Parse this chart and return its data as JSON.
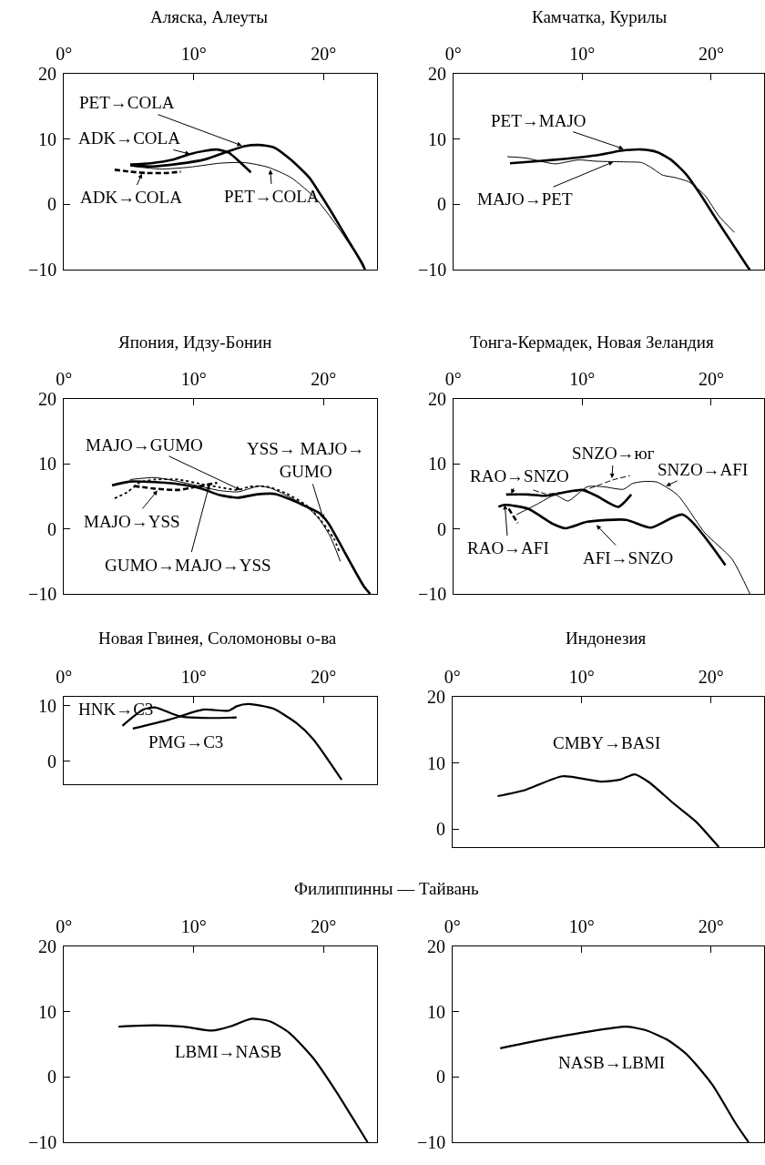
{
  "chart_data": [
    {
      "type": "line",
      "title": "Аляска, Алеуты",
      "xlim": [
        0,
        24.1
      ],
      "ylim": [
        -10,
        20
      ],
      "xticks": [
        {
          "value": 0,
          "label": "0°"
        },
        {
          "value": 10,
          "label": "10°"
        },
        {
          "value": 20,
          "label": "20°"
        }
      ],
      "yticks": [
        -10,
        0,
        10,
        20
      ],
      "series": [
        {
          "color": "#000000",
          "line_style": "solid",
          "x": [
            5.1,
            6.7,
            8.8,
            10.9,
            12.5,
            13.9,
            15.0,
            16.2,
            17.5,
            18.9,
            19.8,
            20.8,
            21.9,
            23.0,
            23.2
          ],
          "values": [
            6.0,
            5.8,
            6.2,
            6.9,
            8.0,
            8.9,
            9.1,
            8.7,
            6.8,
            4.1,
            1.4,
            -1.8,
            -5.5,
            -9.1,
            -10
          ]
        },
        {
          "color": "#000000",
          "line_style": "solid",
          "x": [
            5.1,
            6.7,
            8.3,
            9.7,
            10.9,
            11.8,
            12.7,
            13.6,
            14.4
          ],
          "values": [
            6.1,
            6.3,
            6.8,
            7.7,
            8.2,
            8.4,
            7.9,
            6.4,
            4.9
          ]
        },
        {
          "color": "#000000",
          "line_style": "solid",
          "x": [
            5.1,
            7.4,
            9.7,
            12.0,
            13.9,
            15.7,
            17.5,
            19.4,
            21.0,
            22.4,
            23.1
          ],
          "values": [
            5.9,
            5.4,
            5.7,
            6.3,
            6.4,
            5.7,
            4.1,
            0.9,
            -3.2,
            -7.3,
            -9.8
          ]
        },
        {
          "color": "#000000",
          "line_style": "dashed",
          "x": [
            3.9,
            5.1,
            6.3,
            7.9,
            9.0
          ],
          "values": [
            5.3,
            5.0,
            4.8,
            4.8,
            5.0
          ]
        }
      ],
      "annotations": [
        {
          "text": "PET→COLA",
          "x": 13.7,
          "y": 9.0
        },
        {
          "text": "ADK→COLA",
          "x": 9.7,
          "y": 7.7
        },
        {
          "text": "ADK→COLA",
          "x": 6.0,
          "y": 4.7
        },
        {
          "text": "PET→COLA",
          "x": 15.9,
          "y": 5.3
        }
      ]
    },
    {
      "type": "line",
      "title": "Камчатка, Курилы",
      "xlim": [
        0,
        24.1
      ],
      "ylim": [
        -10,
        20
      ],
      "xticks": [
        {
          "value": 0,
          "label": "0°"
        },
        {
          "value": 10,
          "label": "10°"
        },
        {
          "value": 20,
          "label": "20°"
        }
      ],
      "yticks": [
        -10,
        0,
        10,
        20
      ],
      "series": [
        {
          "color": "#000000",
          "line_style": "solid",
          "x": [
            4.4,
            6.5,
            8.8,
            11.1,
            13.0,
            14.6,
            15.8,
            16.9,
            18.1,
            19.2,
            20.4,
            21.6,
            22.8,
            23.0
          ],
          "values": [
            6.3,
            6.6,
            7.0,
            7.5,
            8.2,
            8.4,
            8.0,
            6.8,
            4.5,
            1.4,
            -2.3,
            -5.9,
            -9.5,
            -10
          ]
        },
        {
          "color": "#000000",
          "line_style": "solid",
          "x": [
            4.2,
            5.6,
            7.0,
            7.9,
            9.7,
            11.1,
            13.4,
            14.6,
            15.3,
            16.2,
            17.2,
            18.3,
            19.5,
            20.6,
            21.8
          ],
          "values": [
            7.3,
            7.1,
            6.5,
            6.2,
            6.8,
            6.6,
            6.5,
            6.4,
            5.7,
            4.5,
            4.1,
            3.4,
            1.4,
            -1.8,
            -4.3
          ]
        }
      ],
      "annotations": [
        {
          "text": "PET→MAJO",
          "x": 13.2,
          "y": 8.5
        },
        {
          "text": "MAJO→PET",
          "x": 12.4,
          "y": 6.5
        }
      ]
    },
    {
      "type": "line",
      "title": "Япония, Идзу-Бонин",
      "xlim": [
        0,
        24.1
      ],
      "ylim": [
        -10,
        20
      ],
      "xticks": [
        {
          "value": 0,
          "label": "0°"
        },
        {
          "value": 10,
          "label": "10°"
        },
        {
          "value": 20,
          "label": "20°"
        }
      ],
      "yticks": [
        -10,
        0,
        10,
        20
      ],
      "series": [
        {
          "color": "#000000",
          "line_style": "solid",
          "x": [
            3.7,
            5.1,
            7.0,
            8.8,
            10.6,
            12.0,
            13.4,
            14.8,
            16.2,
            17.5,
            18.7,
            19.7,
            20.4,
            21.2,
            22.1,
            23.1,
            23.6
          ],
          "values": [
            6.7,
            7.3,
            7.2,
            6.9,
            6.2,
            5.2,
            4.8,
            5.3,
            5.4,
            4.5,
            3.4,
            2.4,
            0.8,
            -2.0,
            -5.3,
            -8.8,
            -10
          ]
        },
        {
          "color": "#000000",
          "line_style": "solid",
          "x": [
            5.1,
            7.0,
            8.8,
            10.6,
            12.0,
            13.4,
            14.3,
            15.0,
            15.9,
            17.3,
            18.7,
            19.6,
            20.5,
            21.3
          ],
          "values": [
            7.6,
            7.9,
            7.3,
            6.5,
            5.9,
            5.7,
            6.2,
            6.6,
            6.3,
            5.0,
            3.4,
            1.7,
            -1.1,
            -5.0
          ]
        },
        {
          "color": "#000000",
          "line_style": "dotted",
          "x": [
            3.9,
            4.9,
            5.8,
            7.0,
            8.8,
            10.6,
            12.0,
            13.4,
            14.3,
            15.7,
            17.1,
            18.7,
            19.8,
            20.8,
            21.2
          ],
          "values": [
            4.7,
            5.7,
            7.1,
            7.6,
            7.6,
            6.9,
            6.4,
            6.0,
            6.5,
            6.5,
            5.5,
            3.6,
            1.3,
            -1.5,
            -3.4
          ]
        },
        {
          "color": "#000000",
          "line_style": "dashed",
          "x": [
            5.4,
            7.0,
            8.8,
            10.2,
            11.8
          ],
          "values": [
            6.6,
            6.2,
            6.0,
            6.5,
            7.1
          ]
        }
      ],
      "annotations": [
        {
          "text": "MAJO→GUMO",
          "x": 13.6,
          "y": 6.0
        },
        {
          "text": "YSS→ MAJO→\nGUMO",
          "x": 20.0,
          "y": 1.5
        },
        {
          "text": "MAJO→YSS",
          "x": 7.2,
          "y": 5.9
        },
        {
          "text": "GUMO→MAJO→YSS",
          "x": 11.2,
          "y": 6.8
        }
      ]
    },
    {
      "type": "line",
      "title": "Тонга-Кермадек, Новая Зеландия",
      "xlim": [
        0,
        24.1
      ],
      "ylim": [
        -10,
        20
      ],
      "xticks": [
        {
          "value": 0,
          "label": "0°"
        },
        {
          "value": 10,
          "label": "10°"
        },
        {
          "value": 20,
          "label": "20°"
        }
      ],
      "yticks": [
        -10,
        0,
        10,
        20
      ],
      "series": [
        {
          "color": "#000000",
          "line_style": "solid",
          "x": [
            4.1,
            5.8,
            7.2,
            8.8,
            10.0,
            11.1,
            12.8,
            13.8
          ],
          "values": [
            5.3,
            5.3,
            5.1,
            5.7,
            6.0,
            5.1,
            3.4,
            5.3
          ]
        },
        {
          "color": "#000000",
          "line_style": "solid",
          "x": [
            3.5,
            4.0,
            5.8,
            7.7,
            8.7,
            10.4,
            13.4,
            15.3,
            17.8,
            21.1
          ],
          "values": [
            3.4,
            3.7,
            3.1,
            0.8,
            0.1,
            1.1,
            1.4,
            0.2,
            2.2,
            -5.6
          ]
        },
        {
          "color": "#000000",
          "line_style": "solid",
          "x": [
            4.9,
            6.5,
            7.9,
            8.9,
            10.4,
            11.6,
            13.2,
            13.9,
            14.8,
            15.8,
            17.4,
            19.5,
            21.6,
            23.0
          ],
          "values": [
            2.2,
            3.8,
            5.2,
            4.3,
            6.5,
            6.5,
            6.1,
            7.0,
            7.3,
            7.2,
            5.2,
            -0.6,
            -4.6,
            -10
          ]
        },
        {
          "color": "#000000",
          "line_style": "dashed",
          "x": [
            6.2,
            7.2,
            8.8,
            10.0,
            11.1,
            12.3,
            13.7
          ],
          "values": [
            6.0,
            5.4,
            5.7,
            5.9,
            6.6,
            7.5,
            8.2
          ]
        },
        {
          "color": "#000000",
          "line_style": "dashed",
          "x": [
            4.3,
            5.0
          ],
          "values": [
            3.1,
            0.9
          ]
        }
      ],
      "annotations": [
        {
          "text": "SNZO→юг",
          "x": 12.3,
          "y": 7.8
        },
        {
          "text": "RAO→SNZO",
          "x": 4.5,
          "y": 5.4
        },
        {
          "text": "SNZO→AFI",
          "x": 16.5,
          "y": 6.6
        },
        {
          "text": "RAO→AFI",
          "x": 4.0,
          "y": 3.7
        },
        {
          "text": "AFI→SNZO",
          "x": 11.1,
          "y": 0.6
        }
      ]
    },
    {
      "type": "line",
      "title": "Новая Гвинея, Соломоновы о-ва",
      "xlim": [
        0,
        24.1
      ],
      "ylim": [
        -4.1,
        11.6
      ],
      "xticks": [
        {
          "value": 0,
          "label": "0°"
        },
        {
          "value": 10,
          "label": "10°"
        },
        {
          "value": 20,
          "label": "20°"
        }
      ],
      "yticks": [
        0,
        10
      ],
      "series": [
        {
          "color": "#000000",
          "line_style": "solid",
          "x": [
            4.5,
            6.1,
            7.0,
            8.9,
            11.1,
            13.3
          ],
          "values": [
            6.4,
            9.3,
            9.7,
            8.1,
            7.8,
            7.9
          ]
        },
        {
          "color": "#000000",
          "line_style": "solid",
          "x": [
            5.3,
            8.1,
            10.7,
            12.7,
            13.3,
            14.2,
            16.1,
            17.9,
            19.2,
            21.4
          ],
          "values": [
            5.9,
            7.5,
            9.3,
            9.1,
            9.9,
            10.3,
            9.5,
            6.9,
            4.0,
            -3.3
          ]
        }
      ],
      "annotations": [
        "HNK→C3",
        "PMG→C3"
      ]
    },
    {
      "type": "line",
      "title": "Индонезия",
      "xlim": [
        0,
        24.1
      ],
      "ylim": [
        -2.7,
        20
      ],
      "xticks": [
        {
          "value": 0,
          "label": "0°"
        },
        {
          "value": 10,
          "label": "10°"
        },
        {
          "value": 20,
          "label": "20°"
        }
      ],
      "yticks": [
        0,
        10,
        20
      ],
      "series": [
        {
          "color": "#000000",
          "line_style": "solid",
          "x": [
            3.5,
            5.6,
            8.5,
            11.5,
            13.0,
            14.1,
            15.2,
            17.1,
            18.8,
            20.6
          ],
          "values": [
            5.0,
            5.9,
            8.0,
            7.2,
            7.5,
            8.3,
            7.1,
            3.9,
            1.2,
            -2.7
          ]
        }
      ],
      "annotations": [
        "CMBY→BASI"
      ]
    },
    {
      "type": "line",
      "title": "Филиппинны — Тайвань",
      "xlim": [
        0,
        24.1
      ],
      "ylim": [
        -10,
        20
      ],
      "xticks": [
        {
          "value": 0,
          "label": "0°"
        },
        {
          "value": 10,
          "label": "10°"
        },
        {
          "value": 20,
          "label": "20°"
        }
      ],
      "yticks": [
        -10,
        0,
        10,
        20
      ],
      "series": [
        {
          "color": "#000000",
          "line_style": "solid",
          "x": [
            4.2,
            7.0,
            9.2,
            11.4,
            12.9,
            14.4,
            15.9,
            17.4,
            19.2,
            21.0,
            22.5,
            23.4
          ],
          "values": [
            7.7,
            7.9,
            7.7,
            7.1,
            7.8,
            8.9,
            8.5,
            6.7,
            2.9,
            -2.3,
            -7.1,
            -10
          ]
        }
      ],
      "annotations": [
        "LBMI→NASB"
      ]
    },
    {
      "type": "line",
      "xlim": [
        0,
        24.1
      ],
      "ylim": [
        -10,
        20
      ],
      "xticks": [
        {
          "value": 0,
          "label": "0°"
        },
        {
          "value": 10,
          "label": "10°"
        },
        {
          "value": 20,
          "label": "20°"
        }
      ],
      "yticks": [
        -10,
        0,
        10,
        20
      ],
      "series": [
        {
          "color": "#000000",
          "line_style": "solid",
          "x": [
            3.7,
            6.7,
            10.4,
            13.4,
            14.9,
            16.7,
            18.2,
            20.1,
            21.9,
            22.9
          ],
          "values": [
            4.4,
            5.6,
            6.9,
            7.7,
            7.2,
            5.6,
            3.3,
            -1.2,
            -7.1,
            -10
          ]
        }
      ],
      "annotations": [
        "NASB→LBMI"
      ]
    }
  ]
}
